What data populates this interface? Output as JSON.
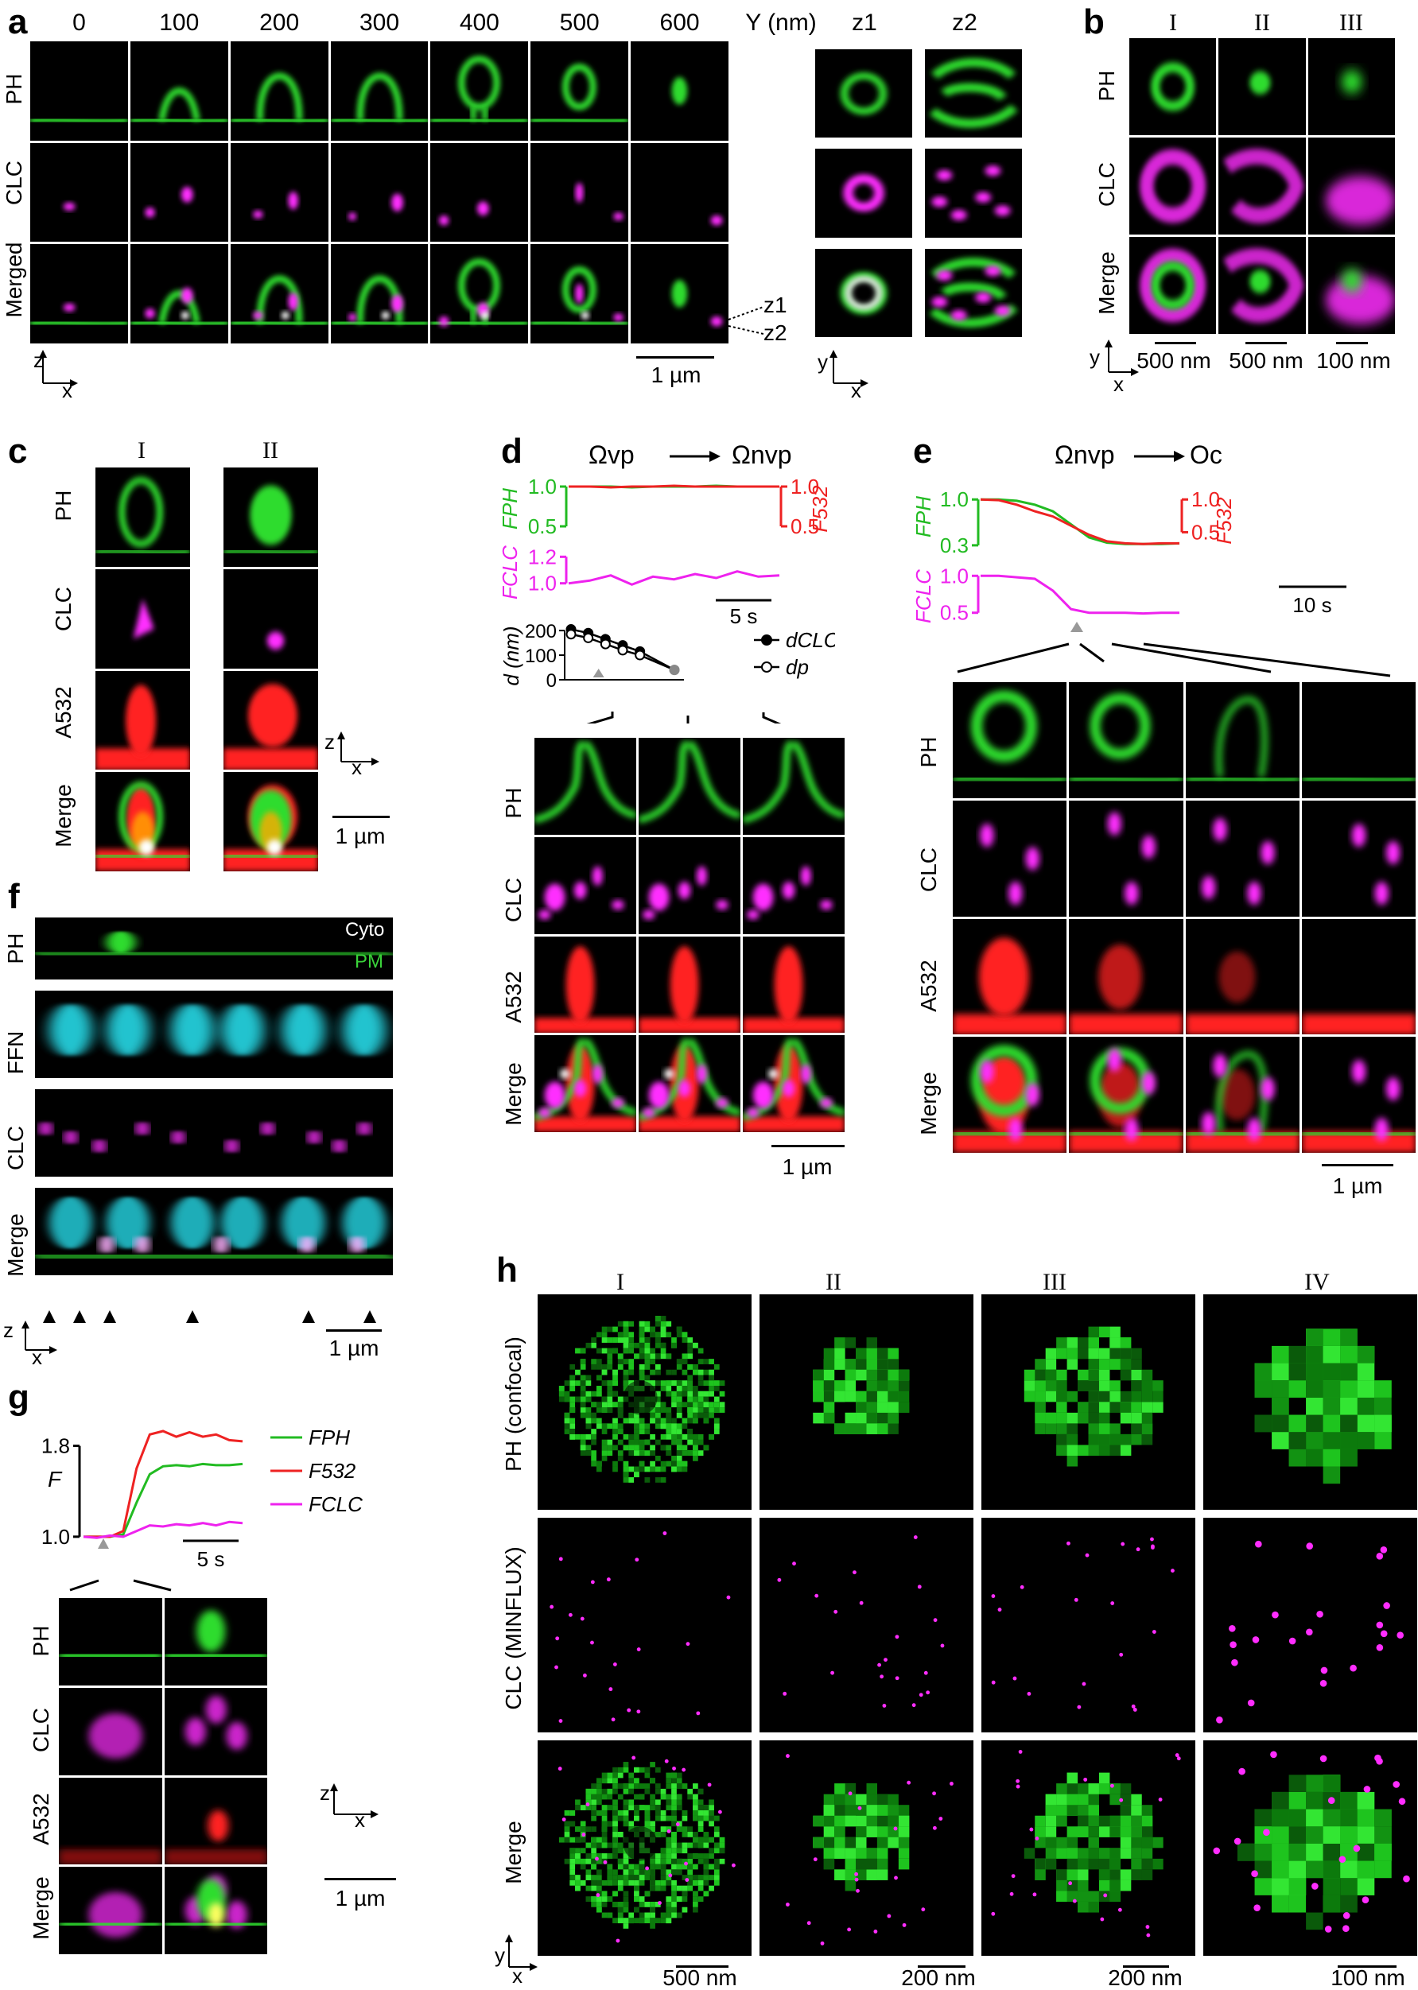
{
  "panels": {
    "a": {
      "label": "a",
      "columns": [
        "0",
        "100",
        "200",
        "300",
        "400",
        "500",
        "600"
      ],
      "y_unit": "Y (nm)",
      "rows": [
        "PH",
        "CLC",
        "Merged"
      ],
      "z_columns": [
        "z1",
        "z2"
      ],
      "z_markers": [
        "z1",
        "z2"
      ],
      "scalebar": "1 µm",
      "axes_zx": {
        "v": "z",
        "h": "x"
      },
      "axes_yx": {
        "v": "y",
        "h": "x"
      }
    },
    "b": {
      "label": "b",
      "columns": [
        "I",
        "II",
        "III"
      ],
      "rows": [
        "PH",
        "CLC",
        "Merge"
      ],
      "scalebars": [
        "500 nm",
        "500 nm",
        "100 nm"
      ],
      "axes": {
        "v": "y",
        "h": "x"
      }
    },
    "c": {
      "label": "c",
      "columns": [
        "I",
        "II"
      ],
      "rows": [
        "PH",
        "CLC",
        "A532",
        "Merge"
      ],
      "scalebar": "1 µm",
      "axes": {
        "v": "z",
        "h": "x"
      }
    },
    "d": {
      "label": "d",
      "transition_from": "Ωvp",
      "transition_to": "Ωnvp",
      "rows": [
        "PH",
        "CLC",
        "A532",
        "Merge"
      ],
      "scalebar": "1 µm",
      "time_scalebar": "5 s",
      "legend": [
        "dCLC",
        "dp"
      ],
      "ylabel_d": "d (nm)",
      "ylabel_fph": "FPH",
      "ylabel_f532": "F532",
      "ylabel_fclc": "FCLC"
    },
    "e": {
      "label": "e",
      "transition_from": "Ωnvp",
      "transition_to": "Oc",
      "rows": [
        "PH",
        "CLC",
        "A532",
        "Merge"
      ],
      "scalebar": "1 µm",
      "time_scalebar": "10 s",
      "ylabel_fph": "FPH",
      "ylabel_f532": "F532",
      "ylabel_fclc": "FCLC"
    },
    "f": {
      "label": "f",
      "rows": [
        "PH",
        "FFN",
        "CLC",
        "Merge"
      ],
      "annotations": [
        "Cyto",
        "PM"
      ],
      "scalebar": "1 µm",
      "axes": {
        "v": "z",
        "h": "x"
      }
    },
    "g": {
      "label": "g",
      "rows": [
        "PH",
        "CLC",
        "A532",
        "Merge"
      ],
      "legend": [
        "FPH",
        "F532",
        "FCLC"
      ],
      "ylabel": "F",
      "time_scalebar": "5 s",
      "scalebar": "1 µm",
      "axes": {
        "v": "z",
        "h": "x"
      }
    },
    "h": {
      "label": "h",
      "columns": [
        "I",
        "II",
        "III",
        "IV"
      ],
      "rows": [
        "PH (confocal)",
        "CLC (MINFLUX)",
        "Merge"
      ],
      "scalebars": [
        "500 nm",
        "200 nm",
        "200 nm",
        "100 nm"
      ],
      "axes": {
        "v": "y",
        "h": "x"
      }
    }
  },
  "chart_data": [
    {
      "type": "line",
      "panel": "d-top",
      "series": [
        {
          "name": "FPH",
          "color": "#22bb22",
          "x": [
            0,
            2,
            4,
            6,
            8,
            10,
            12,
            14,
            16,
            18,
            20
          ],
          "y": [
            1.0,
            1.0,
            1.0,
            0.99,
            1.0,
            1.0,
            1.0,
            1.01,
            1.0,
            1.0,
            1.0
          ]
        },
        {
          "name": "F532",
          "color": "#ee2222",
          "x": [
            0,
            2,
            4,
            6,
            8,
            10,
            12,
            14,
            16,
            18,
            20
          ],
          "y": [
            1.0,
            1.0,
            0.99,
            1.0,
            1.0,
            1.01,
            1.0,
            1.0,
            1.0,
            1.0,
            1.0
          ]
        }
      ],
      "yticks_left": [
        0.5,
        1.0
      ],
      "yticks_right": [
        0.5,
        1.0
      ],
      "ylim": [
        0.4,
        1.1
      ]
    },
    {
      "type": "line",
      "panel": "d-mid",
      "series": [
        {
          "name": "FCLC",
          "color": "#ee22ee",
          "x": [
            0,
            2,
            4,
            6,
            8,
            10,
            12,
            14,
            16,
            18,
            20
          ],
          "y": [
            1.0,
            1.02,
            1.06,
            0.99,
            1.05,
            1.03,
            1.07,
            1.04,
            1.09,
            1.05,
            1.06
          ]
        }
      ],
      "yticks": [
        1.0,
        1.2
      ],
      "ylim": [
        0.95,
        1.25
      ]
    },
    {
      "type": "scatter",
      "panel": "d-bottom",
      "series": [
        {
          "name": "dCLC",
          "x": [
            0,
            1,
            2,
            3,
            4,
            6
          ],
          "y": [
            205,
            190,
            165,
            140,
            115,
            40
          ]
        },
        {
          "name": "dp",
          "x": [
            0,
            1,
            2,
            3,
            4,
            6
          ],
          "y": [
            185,
            170,
            145,
            120,
            100,
            40
          ]
        }
      ],
      "yticks": [
        0,
        100,
        200
      ],
      "ylim": [
        0,
        210
      ]
    },
    {
      "type": "line",
      "panel": "e-top",
      "series": [
        {
          "name": "FPH",
          "color": "#22bb22",
          "x": [
            0,
            2,
            4,
            6,
            8,
            10,
            12,
            14,
            16,
            18,
            20,
            22
          ],
          "y": [
            1.0,
            1.0,
            0.98,
            0.92,
            0.82,
            0.62,
            0.42,
            0.34,
            0.32,
            0.32,
            0.32,
            0.33
          ]
        },
        {
          "name": "F532",
          "color": "#ee2222",
          "x": [
            0,
            2,
            4,
            6,
            8,
            10,
            12,
            14,
            16,
            18,
            20,
            22
          ],
          "y": [
            1.0,
            0.99,
            0.92,
            0.82,
            0.74,
            0.6,
            0.46,
            0.36,
            0.33,
            0.32,
            0.33,
            0.33
          ]
        }
      ],
      "yticks_left": [
        0.3,
        1.0
      ],
      "yticks_right": [
        0.5,
        1.0
      ],
      "ylim": [
        0.25,
        1.1
      ]
    },
    {
      "type": "line",
      "panel": "e-mid",
      "series": [
        {
          "name": "FCLC",
          "color": "#ee22ee",
          "x": [
            0,
            2,
            4,
            6,
            8,
            10,
            12,
            14,
            16,
            18,
            20,
            22
          ],
          "y": [
            1.0,
            1.0,
            0.98,
            0.96,
            0.8,
            0.55,
            0.5,
            0.5,
            0.5,
            0.49,
            0.5,
            0.5
          ]
        }
      ],
      "yticks": [
        0.5,
        1.0
      ],
      "ylim": [
        0.4,
        1.1
      ]
    },
    {
      "type": "line",
      "panel": "g",
      "series": [
        {
          "name": "FPH",
          "color": "#22bb22",
          "x": [
            0,
            1,
            2,
            3,
            4,
            5,
            6,
            7,
            8,
            9,
            10,
            11,
            12
          ],
          "y": [
            1.0,
            1.0,
            1.0,
            1.02,
            1.3,
            1.55,
            1.62,
            1.63,
            1.62,
            1.64,
            1.63,
            1.63,
            1.64
          ]
        },
        {
          "name": "F532",
          "color": "#ee2222",
          "x": [
            0,
            1,
            2,
            3,
            4,
            5,
            6,
            7,
            8,
            9,
            10,
            11,
            12
          ],
          "y": [
            1.0,
            1.0,
            1.0,
            1.05,
            1.6,
            1.9,
            1.93,
            1.88,
            1.92,
            1.88,
            1.9,
            1.85,
            1.84
          ]
        },
        {
          "name": "FCLC",
          "color": "#ee22ee",
          "x": [
            0,
            1,
            2,
            3,
            4,
            5,
            6,
            7,
            8,
            9,
            10,
            11,
            12
          ],
          "y": [
            1.0,
            0.99,
            1.01,
            1.0,
            1.05,
            1.1,
            1.09,
            1.11,
            1.1,
            1.12,
            1.1,
            1.13,
            1.12
          ]
        }
      ],
      "yticks": [
        1.0,
        1.8
      ],
      "ylim": [
        0.95,
        2.0
      ]
    }
  ]
}
